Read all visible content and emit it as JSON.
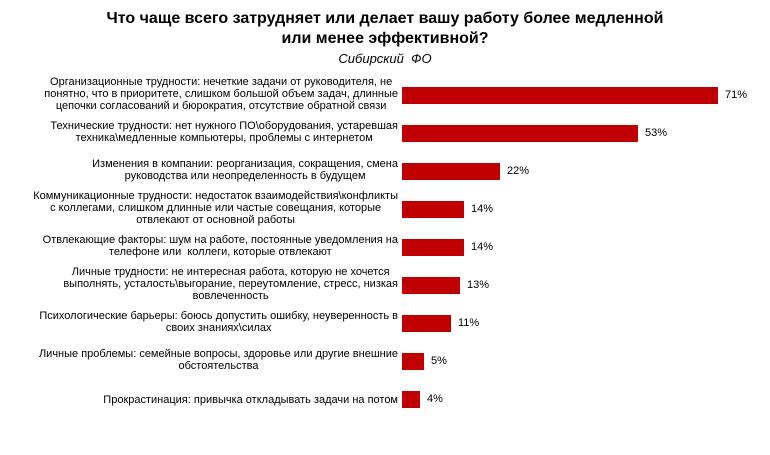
{
  "title": "Что чаще всего затрудняет или делает вашу работу более медленной\nили менее эффективной?",
  "subtitle": "Сибирский  ФО",
  "colors": {
    "bar": "#C00000",
    "text": "#000000",
    "background": "#FFFFFF"
  },
  "chart_data": {
    "type": "bar",
    "orientation": "horizontal",
    "title": "Что чаще всего затрудняет или делает вашу работу более медленной или менее эффективной?",
    "subtitle": "Сибирский ФО",
    "categories": [
      "Организационные трудности: нечеткие задачи от руководителя, не\nпонятно, что в приоритете, слишком большой объем задач, длинные\nцепочки согласований и бюрократия, отсутствие обратной связи",
      "Технические трудности: нет нужного ПО\\оборудования, устаревшая\nтехника\\медленные компьютеры, проблемы с интернетом",
      "Изменения в компании: реорганизация, сокращения, смена\nруководства или неопределенность в будущем",
      "Коммуникационные трудности: недостаток взаимодействия\\конфликты\nс коллегами, слишком длинные или частые совещания, которые\nотвлекают от основной работы",
      "Отвлекающие факторы: шум на работе, постоянные уведомления на\nтелефоне или  коллеги, которые отвлекают",
      "Личные трудности: не интересная работа, которую не хочется\nвыполнять, усталость\\выгорание, переутомление, стресс, низкая\nвовлеченность",
      "Психологические барьеры: боюсь допустить ошибку, неуверенность в\nсвоих знаниях\\силах",
      "Личные проблемы: семейные вопросы, здоровье или другие внешние\nобстоятельства",
      "Прокрастинация: привычка откладывать задачи на потом"
    ],
    "values": [
      71,
      53,
      22,
      14,
      14,
      13,
      11,
      5,
      4
    ],
    "value_labels": [
      "71%",
      "53%",
      "22%",
      "14%",
      "14%",
      "13%",
      "11%",
      "5%",
      "4%"
    ],
    "unit": "%",
    "xlim": [
      0,
      80
    ],
    "grid": false,
    "legend": false,
    "bar_color": "#C00000",
    "data_label_position": "outside-end"
  }
}
